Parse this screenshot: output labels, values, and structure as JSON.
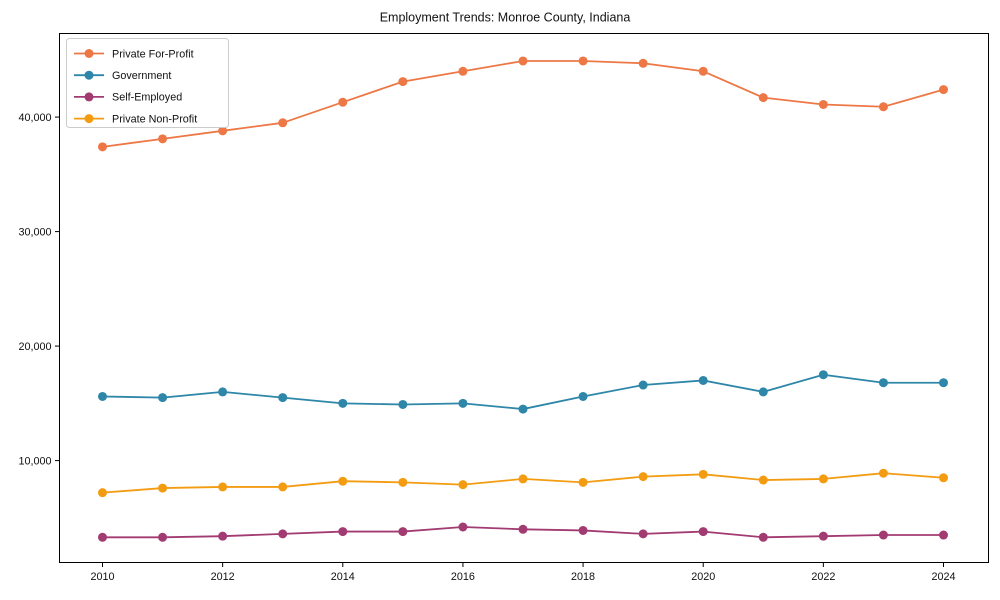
{
  "chart_data": {
    "type": "line",
    "title": "Employment Trends: Monroe County, Indiana",
    "xlabel": "",
    "ylabel": "",
    "x": [
      2010,
      2011,
      2012,
      2013,
      2014,
      2015,
      2016,
      2017,
      2018,
      2019,
      2020,
      2021,
      2022,
      2023,
      2024
    ],
    "series": [
      {
        "name": "Private For-Profit",
        "color": "#ED7846",
        "values": [
          37400,
          38100,
          38800,
          39500,
          41300,
          43100,
          44000,
          44900,
          44900,
          44700,
          44000,
          41700,
          41100,
          40900,
          42400
        ]
      },
      {
        "name": "Government",
        "color": "#2E86A8",
        "values": [
          15600,
          15500,
          16000,
          15500,
          15000,
          14900,
          15000,
          14500,
          15600,
          16600,
          17000,
          16000,
          17500,
          16800,
          16800
        ]
      },
      {
        "name": "Self-Employed",
        "color": "#A23B72",
        "values": [
          3300,
          3300,
          3400,
          3600,
          3800,
          3800,
          4200,
          4000,
          3900,
          3600,
          3800,
          3300,
          3400,
          3500,
          3500
        ]
      },
      {
        "name": "Private Non-Profit",
        "color": "#F39C12",
        "values": [
          7200,
          7600,
          7700,
          7700,
          8200,
          8100,
          7900,
          8400,
          8100,
          8600,
          8800,
          8300,
          8400,
          8900,
          8500
        ]
      }
    ],
    "xticks": [
      2010,
      2012,
      2014,
      2016,
      2018,
      2020,
      2022,
      2024
    ],
    "yticks": [
      10000,
      20000,
      30000,
      40000
    ],
    "ytick_labels": [
      "10,000",
      "20,000",
      "30,000",
      "40,000"
    ],
    "ylim": [
      1100,
      47300
    ],
    "grid": false,
    "legend_position": "upper-left",
    "marker": "circle",
    "background_color": "#ffffff",
    "axis_color": "#000000",
    "text_color": "#111111"
  }
}
